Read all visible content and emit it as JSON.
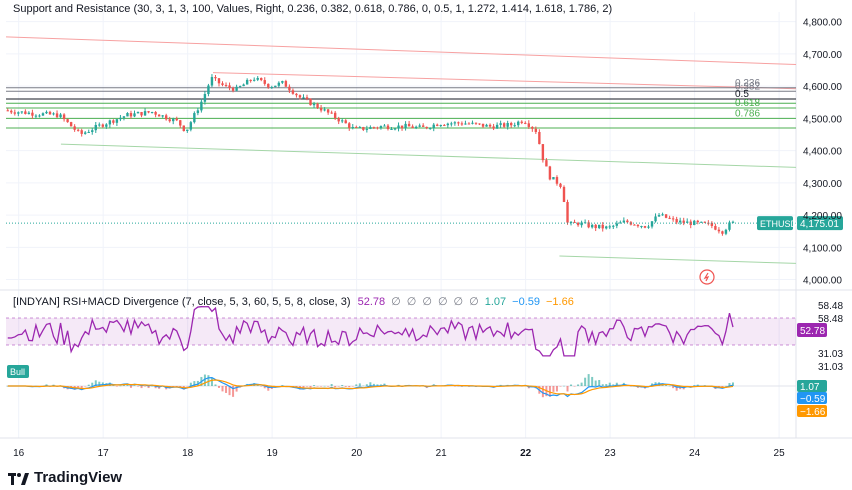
{
  "chart_data": [
    {
      "type": "candlestick",
      "title": "Support and Resistance (30, 3, 1, 3, 100, Values, Right, 0.236, 0.382, 0.618, 0.786, 0, 0.5, 1, 1.272, 1.414, 1.618, 1.786, 2)",
      "symbol": "ETHUSD",
      "last_price": "4,175.01",
      "ylim": [
        3980,
        4830
      ],
      "y_ticks": [
        "4,800.00",
        "4,700.00",
        "4,600.00",
        "4,500.00",
        "4,400.00",
        "4,300.00",
        "4,200.00",
        "4,100.00",
        "4,000.00"
      ],
      "y_tick_values": [
        4800,
        4700,
        4600,
        4500,
        4400,
        4300,
        4200,
        4100,
        4000
      ],
      "x_ticks": [
        "16",
        "17",
        "18",
        "19",
        "20",
        "21",
        "22",
        "23",
        "24",
        "25"
      ],
      "x_range": [
        15.85,
        25.2
      ],
      "fib_levels": [
        {
          "label": "0.236",
          "value": 4595,
          "color": "#787b86"
        },
        {
          "label": "0.382",
          "value": 4584,
          "color": "#787b86"
        },
        {
          "label": "0.5",
          "value": 4560,
          "color": "#131722"
        },
        {
          "label": "0.618",
          "value": 4532,
          "color": "#4caf50"
        },
        {
          "label": "0.786",
          "value": 4500,
          "color": "#4caf50"
        }
      ],
      "extra_levels": [
        4547,
        4470
      ],
      "trend_lines": [
        {
          "color": "#f7a1a1",
          "points": [
            [
              15.85,
              4753
            ],
            [
              25.2,
              4667
            ]
          ]
        },
        {
          "color": "#f7a1a1",
          "points": [
            [
              18.3,
              4642
            ],
            [
              25.2,
              4592
            ]
          ]
        },
        {
          "color": "#a5d6a7",
          "points": [
            [
              16.5,
              4420
            ],
            [
              25.2,
              4348
            ]
          ]
        },
        {
          "color": "#a5d6a7",
          "points": [
            [
              22.4,
              4073
            ],
            [
              25.2,
              4050
            ]
          ]
        }
      ],
      "price_path": [
        [
          15.85,
          4525
        ],
        [
          16.2,
          4515
        ],
        [
          16.5,
          4510
        ],
        [
          16.75,
          4450
        ],
        [
          17.0,
          4480
        ],
        [
          17.3,
          4510
        ],
        [
          17.6,
          4520
        ],
        [
          17.9,
          4490
        ],
        [
          18.0,
          4460
        ],
        [
          18.1,
          4510
        ],
        [
          18.2,
          4560
        ],
        [
          18.3,
          4625
        ],
        [
          18.45,
          4600
        ],
        [
          18.6,
          4590
        ],
        [
          18.8,
          4625
        ],
        [
          19.0,
          4600
        ],
        [
          19.15,
          4610
        ],
        [
          19.35,
          4565
        ],
        [
          19.6,
          4530
        ],
        [
          19.85,
          4490
        ],
        [
          20.0,
          4465
        ],
        [
          20.3,
          4475
        ],
        [
          20.6,
          4475
        ],
        [
          20.8,
          4470
        ],
        [
          21.0,
          4485
        ],
        [
          21.3,
          4485
        ],
        [
          21.6,
          4475
        ],
        [
          21.85,
          4480
        ],
        [
          22.0,
          4495
        ],
        [
          22.15,
          4460
        ],
        [
          22.22,
          4380
        ],
        [
          22.3,
          4320
        ],
        [
          22.45,
          4290
        ],
        [
          22.52,
          4170
        ],
        [
          22.65,
          4175
        ],
        [
          22.8,
          4165
        ],
        [
          23.0,
          4160
        ],
        [
          23.2,
          4180
        ],
        [
          23.45,
          4165
        ],
        [
          23.6,
          4200
        ],
        [
          23.8,
          4180
        ],
        [
          24.0,
          4175
        ],
        [
          24.2,
          4170
        ],
        [
          24.35,
          4150
        ],
        [
          24.45,
          4175
        ]
      ]
    },
    {
      "type": "line",
      "title": "[INDYAN] RSI+MACD Divergence (7, close, 5, 3, 60, 5, 5, 8, close, 3)",
      "legend_values": [
        {
          "text": "52.78",
          "color": "#9c27b0"
        },
        {
          "text": "∅",
          "color": "#787b86"
        },
        {
          "text": "∅",
          "color": "#787b86"
        },
        {
          "text": "∅",
          "color": "#787b86"
        },
        {
          "text": "∅",
          "color": "#787b86"
        },
        {
          "text": "∅",
          "color": "#787b86"
        },
        {
          "text": "∅",
          "color": "#787b86"
        },
        {
          "text": "1.07",
          "color": "#26a69a"
        },
        {
          "text": "−0.59",
          "color": "#2196f3"
        },
        {
          "text": "−1.66",
          "color": "#ff9800"
        }
      ],
      "rsi_band": [
        31.03,
        58.48
      ],
      "rsi_value": "52.78",
      "band_labels": [
        "58.48",
        "58.48",
        "31.03",
        "31.03"
      ],
      "bull_label": "Bull",
      "macd_tags": [
        {
          "text": "1.07",
          "color": "#26a69a"
        },
        {
          "text": "−0.59",
          "color": "#2196f3"
        },
        {
          "text": "−1.66",
          "color": "#ff9800"
        }
      ]
    }
  ],
  "footer": {
    "brand": "TradingView"
  },
  "colors": {
    "up": "#26a69a",
    "down": "#ef5350",
    "rsi": "#9c27b0",
    "macd": "#2196f3",
    "signal": "#ff9800",
    "axis_text": "#131722",
    "grid": "#f0f3fa"
  }
}
